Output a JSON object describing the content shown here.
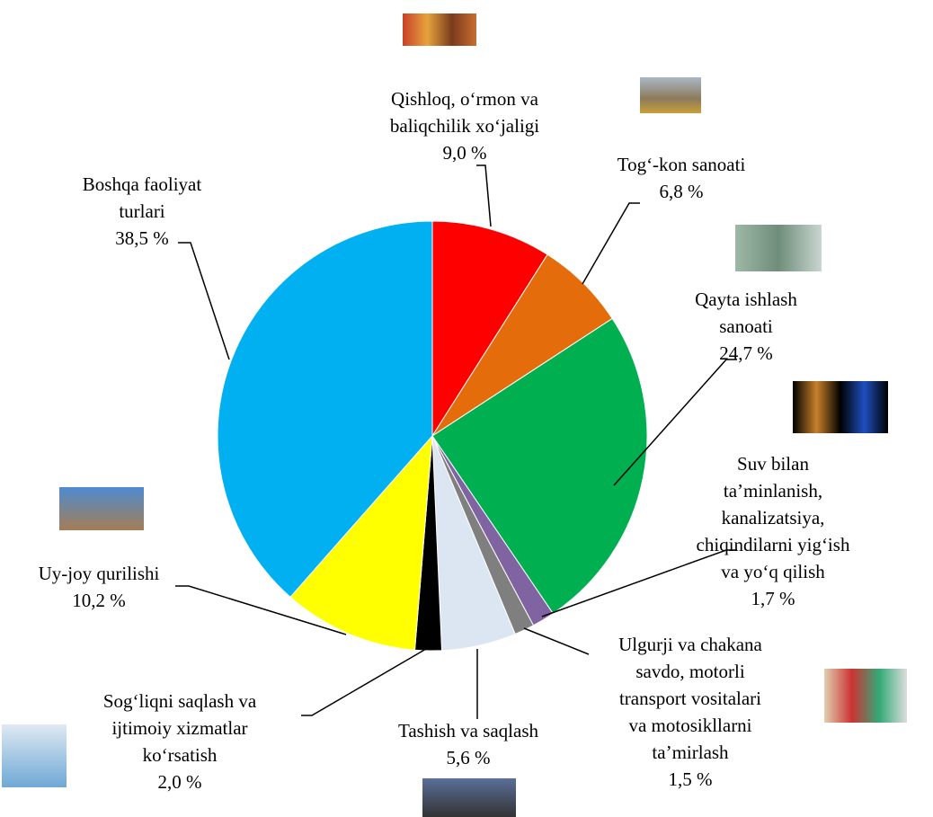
{
  "chart_data": {
    "type": "pie",
    "categories": [
      "Qishloq, o‘rmon va\nbaliqchilik xo‘jaligi",
      "Tog‘-kon sanoati",
      "Qayta ishlash\nsanoati",
      "Suv bilan\nta’minlanish,\nkanalizatsiya,\nchiqindilarni yig‘ish\nva yo‘q qilish",
      "Ulgurji va chakana\nsavdo, motorli\ntransport vositalari\nva motosikllarni\nta’mirlash",
      "Tashish va saqlash",
      "Sog‘liqni saqlash va\nijtimoiy xizmatlar\nko‘rsatish",
      "Uy-joy qurilishi",
      "Boshqa faoliyat\nturlari"
    ],
    "values": [
      9.0,
      6.8,
      24.7,
      1.7,
      1.5,
      5.6,
      2.0,
      10.2,
      38.5
    ],
    "value_labels": [
      "9,0 %",
      "6,8 %",
      "24,7 %",
      "1,7 %",
      "1,5 %",
      "5,6 %",
      "2,0 %",
      "10,2 %",
      "38,5 %"
    ],
    "colors": [
      "#ff0000",
      "#e46c0a",
      "#00b050",
      "#8064a2",
      "#7f7f7f",
      "#dce6f2",
      "#000000",
      "#ffff00",
      "#00b0f0"
    ]
  }
}
